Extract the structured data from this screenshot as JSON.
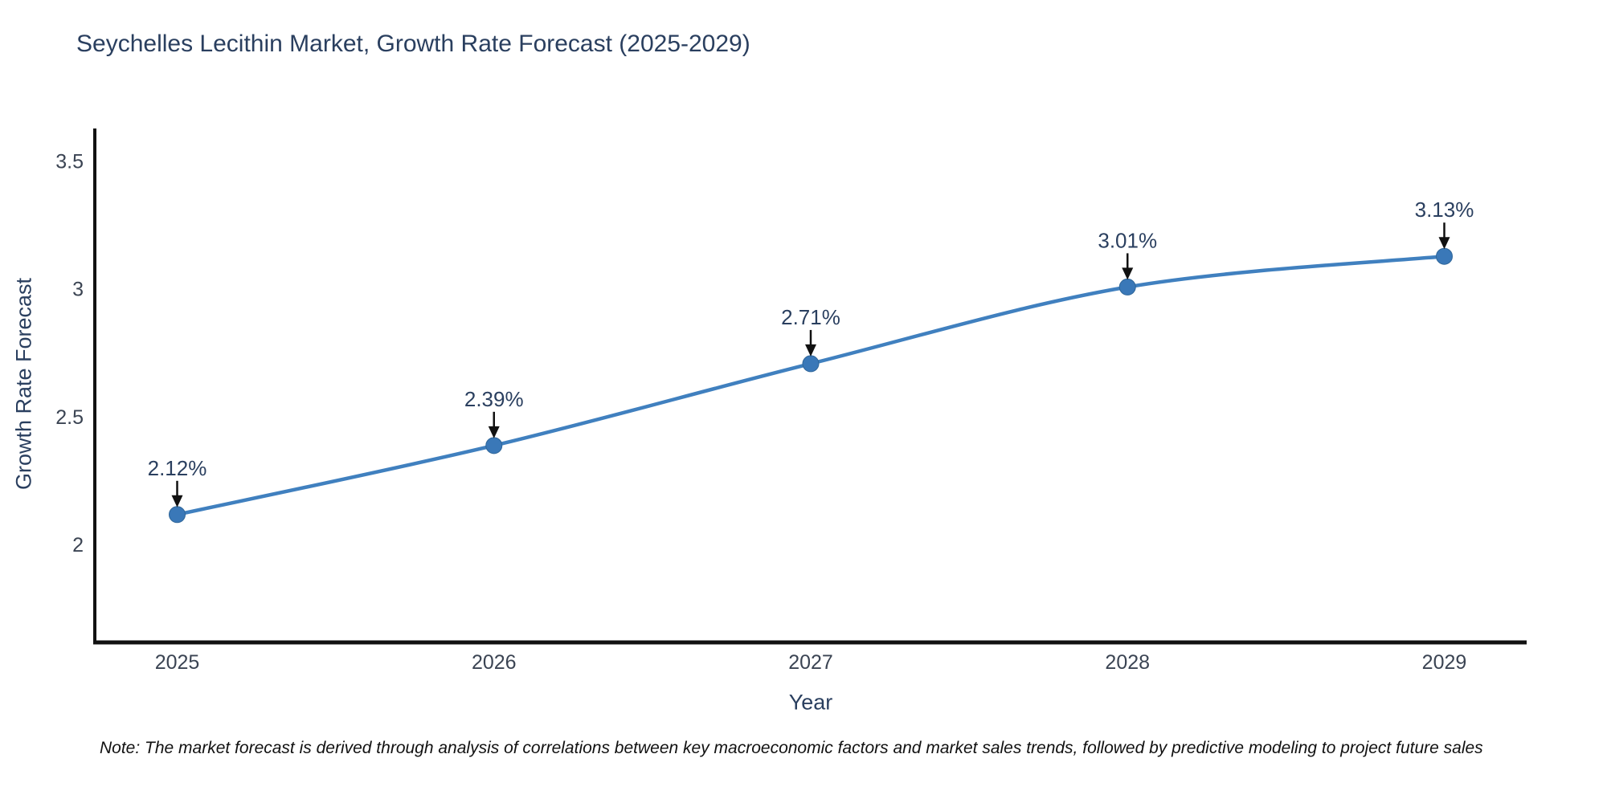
{
  "page": {
    "background": "#ffffff"
  },
  "chart_data": {
    "type": "line",
    "title": "Seychelles Lecithin Market, Growth Rate Forecast (2025-2029)",
    "xlabel": "Year",
    "ylabel": "Growth Rate Forecast",
    "categories": [
      2025,
      2026,
      2027,
      2028,
      2029
    ],
    "values": [
      2.12,
      2.39,
      2.71,
      3.01,
      3.13
    ],
    "point_labels": [
      "2.12%",
      "2.39%",
      "2.71%",
      "3.01%",
      "3.13%"
    ],
    "yticks": [
      {
        "v": 2,
        "label": "2"
      },
      {
        "v": 2.5,
        "label": "2.5"
      },
      {
        "v": 3,
        "label": "3"
      },
      {
        "v": 3.5,
        "label": "3.5"
      }
    ],
    "xlim": [
      2024.74,
      2029.26
    ],
    "ylim": [
      1.62,
      3.63
    ],
    "grid": false,
    "legend": "none",
    "line_shape": "spline",
    "colors": {
      "line": "#4080bf",
      "marker": "#3a78b8",
      "marker_edge": "#2f6699",
      "axis": "#111111",
      "title_text": "#2a3f5f",
      "tick_text": "#3b4453",
      "annotation_text": "#2a3f5f",
      "arrow": "#111111"
    }
  },
  "note": {
    "text": "Note: The market forecast is derived through analysis of correlations between key macroeconomic factors and market sales trends, followed by predictive modeling to project future sales"
  }
}
